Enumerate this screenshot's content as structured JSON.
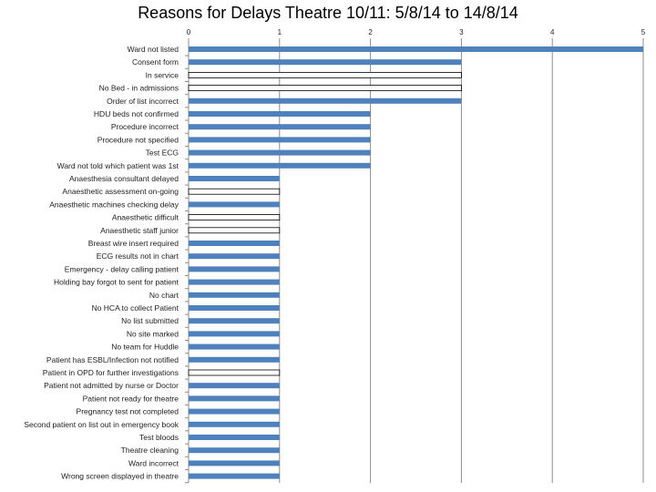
{
  "chart_data": {
    "type": "bar",
    "orientation": "horizontal",
    "title": "Reasons for Delays Theatre 10/11: 5/8/14 to 14/8/14",
    "xlim": [
      0,
      5
    ],
    "x_ticks": [
      "0",
      "1",
      "2",
      "3",
      "4",
      "5"
    ],
    "grid": "vertical major gridlines",
    "bar_color": "#4f81bd",
    "categories": [
      "Ward not listed",
      "Consent form",
      "In service",
      "No Bed - in admissions",
      "Order of list incorrect",
      "HDU beds not confirmed",
      "Procedure incorrect",
      "Procedure not specified",
      "Test ECG",
      "Ward not told which patient was 1st",
      "Anaesthesia consultant delayed",
      "Anaesthetic assessment on-going",
      "Anaesthetic machines checking delay",
      "Anaesthetic difficult",
      "Anaesthetic staff junior",
      "Breast wire insert required",
      "ECG results not in chart",
      "Emergency - delay calling patient",
      "Holding bay forgot to sent for patient",
      "No chart",
      "No HCA to collect Patient",
      "No list submitted",
      "No site marked",
      "No team for Huddle",
      "Patient has ESBL/Infection not notified",
      "Patient in OPD for further investigations",
      "Patient not admitted by nurse or Doctor",
      "Patient not ready for theatre",
      "Pregnancy test not completed",
      "Second patient on list out in emergency book",
      "Test bloods",
      "Theatre cleaning",
      "Ward incorrect",
      "Wrong screen displayed in theatre"
    ],
    "values": [
      5,
      3,
      3,
      3,
      3,
      2,
      2,
      2,
      2,
      2,
      1,
      1,
      1,
      1,
      1,
      1,
      1,
      1,
      1,
      1,
      1,
      1,
      1,
      1,
      1,
      1,
      1,
      1,
      1,
      1,
      1,
      1,
      1,
      1
    ],
    "bar_fill": [
      "solid",
      "solid",
      "outline",
      "outline",
      "solid",
      "solid",
      "solid",
      "solid",
      "solid",
      "solid",
      "solid",
      "outline",
      "solid",
      "outline",
      "outline",
      "solid",
      "solid",
      "solid",
      "solid",
      "solid",
      "solid",
      "solid",
      "solid",
      "solid",
      "solid",
      "outline",
      "solid",
      "solid",
      "solid",
      "solid",
      "solid",
      "solid",
      "solid",
      "solid"
    ]
  }
}
